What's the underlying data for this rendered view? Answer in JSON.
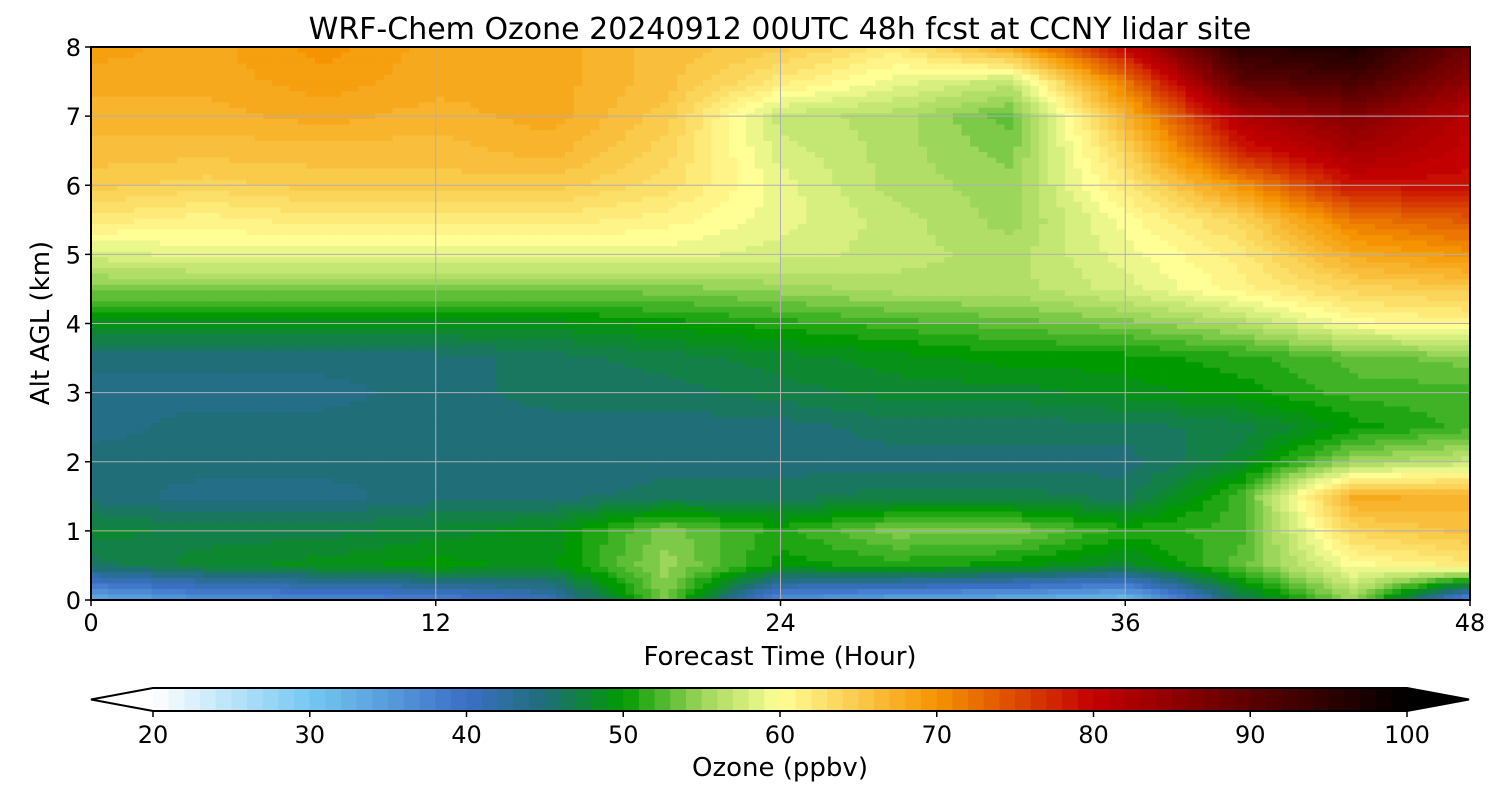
{
  "chart_data": {
    "type": "heatmap",
    "title": "WRF-Chem Ozone  20240912 00UTC 48h fcst at CCNY lidar site",
    "xlabel": "Forecast Time (Hour)",
    "ylabel": "Alt AGL (km)",
    "xlim": [
      0,
      48
    ],
    "ylim": [
      0,
      8
    ],
    "xticks": [
      0,
      12,
      24,
      36,
      48
    ],
    "yticks": [
      0,
      1,
      2,
      3,
      4,
      5,
      6,
      7,
      8
    ],
    "grid": true,
    "x": [
      0,
      4,
      8,
      12,
      16,
      20,
      24,
      28,
      32,
      36,
      40,
      44,
      48
    ],
    "y": [
      0,
      0.5,
      1,
      1.5,
      2,
      2.5,
      3,
      3.5,
      4,
      4.5,
      5,
      5.5,
      6,
      6.5,
      7,
      7.5,
      8
    ],
    "z": [
      [
        33,
        36,
        37,
        38,
        41,
        54,
        36,
        34,
        33,
        31,
        46,
        55,
        36
      ],
      [
        46,
        48,
        49,
        50,
        49,
        55,
        50,
        51,
        50,
        48,
        53,
        60,
        62
      ],
      [
        48,
        47,
        47,
        48,
        49,
        54,
        51,
        54,
        54,
        51,
        52,
        64,
        66
      ],
      [
        45,
        44,
        44,
        45,
        45,
        46,
        46,
        47,
        47,
        46,
        52,
        68,
        67
      ],
      [
        45,
        45,
        45,
        45,
        45,
        45,
        45,
        45,
        45,
        45,
        48,
        55,
        57
      ],
      [
        44,
        45,
        45,
        45,
        45,
        45,
        45,
        46,
        46,
        46,
        47,
        50,
        52
      ],
      [
        44,
        44,
        44,
        45,
        46,
        46,
        47,
        48,
        48,
        49,
        50,
        52,
        52
      ],
      [
        45,
        45,
        45,
        45,
        46,
        47,
        48,
        49,
        50,
        50,
        51,
        53,
        54
      ],
      [
        49,
        49,
        49,
        49,
        49,
        50,
        51,
        52,
        53,
        54,
        56,
        60,
        61
      ],
      [
        54,
        54,
        54,
        54,
        54,
        54,
        55,
        56,
        56,
        58,
        61,
        64,
        65
      ],
      [
        58,
        59,
        59,
        59,
        59,
        59,
        58,
        57,
        56,
        59,
        62,
        68,
        70
      ],
      [
        62,
        61,
        62,
        62,
        62,
        61,
        59,
        57,
        55,
        60,
        64,
        72,
        74
      ],
      [
        65,
        64,
        65,
        65,
        65,
        63,
        59,
        56,
        55,
        62,
        70,
        79,
        79
      ],
      [
        66,
        66,
        66,
        66,
        67,
        64,
        58,
        56,
        54,
        64,
        78,
        83,
        80
      ],
      [
        67,
        67,
        68,
        67,
        68,
        65,
        57,
        56,
        53,
        67,
        82,
        86,
        81
      ],
      [
        68,
        68,
        69,
        68,
        68,
        66,
        62,
        59,
        57,
        72,
        90,
        92,
        85
      ],
      [
        69,
        68,
        70,
        68,
        68,
        66,
        65,
        62,
        68,
        80,
        95,
        97,
        88
      ]
    ],
    "colorbar": {
      "label": "Ozone  (ppbv)",
      "min": 20,
      "max": 100,
      "ticks": [
        20,
        30,
        40,
        50,
        60,
        70,
        80,
        90,
        100
      ],
      "extend": "both"
    },
    "colormap": [
      [
        20,
        "#ffffff"
      ],
      [
        30,
        "#74c8f2"
      ],
      [
        40,
        "#3b6fc6"
      ],
      [
        45,
        "#1f6e78"
      ],
      [
        50,
        "#019a01"
      ],
      [
        55,
        "#9cd65a"
      ],
      [
        60,
        "#ffff96"
      ],
      [
        70,
        "#f59400"
      ],
      [
        80,
        "#c30000"
      ],
      [
        90,
        "#5c0000"
      ],
      [
        100,
        "#000000"
      ]
    ]
  }
}
